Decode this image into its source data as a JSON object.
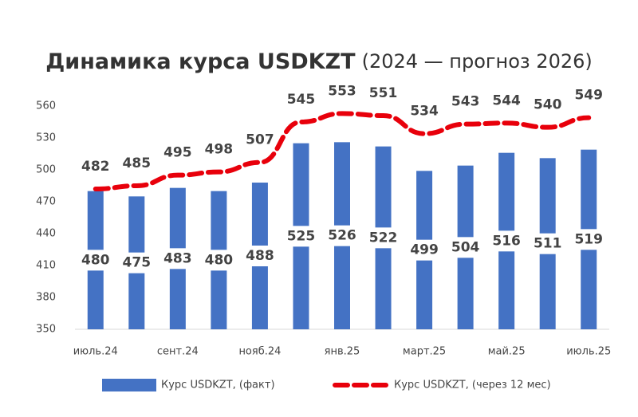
{
  "chart_data": {
    "type": "bar_line",
    "title": "Динамика курса USDKZT",
    "subtitle": "(2024 — прогноз 2026)",
    "categories": [
      "июль.24",
      null,
      "сент.24",
      null,
      "нояб.24",
      null,
      "янв.25",
      null,
      "март.25",
      null,
      "май.25",
      null,
      "июль.25"
    ],
    "series": [
      {
        "name": "Курс USDKZT, (факт)",
        "type": "bar",
        "color": "#4472c4",
        "values": [
          480,
          475,
          483,
          480,
          488,
          525,
          526,
          522,
          499,
          504,
          516,
          511,
          519
        ]
      },
      {
        "name": "Курс USDKZT, (через 12 мес)",
        "type": "line",
        "color": "#e8000b",
        "dashed": true,
        "values": [
          482,
          485,
          495,
          498,
          507,
          545,
          553,
          551,
          534,
          543,
          544,
          540,
          549
        ]
      }
    ],
    "ylim": [
      350,
      560
    ],
    "yticks": [
      350,
      380,
      410,
      440,
      470,
      500,
      530,
      560
    ],
    "legend": "bottom"
  }
}
